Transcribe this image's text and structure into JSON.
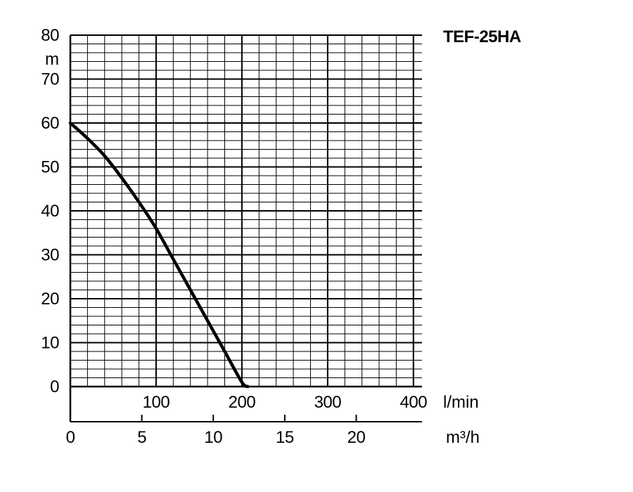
{
  "chart_data": {
    "type": "line",
    "title": "TEF-25HA",
    "ylabel": "m",
    "xlabel_primary": "l/min",
    "xlabel_secondary": "m³/h",
    "ylim": [
      0,
      80
    ],
    "xlim_primary": [
      0,
      410
    ],
    "xlim_secondary": [
      0,
      24.6
    ],
    "yticks": [
      "0",
      "10",
      "20",
      "30",
      "40",
      "50",
      "60",
      "70",
      "80"
    ],
    "xticks_primary": [
      "100",
      "200",
      "300",
      "400"
    ],
    "xticks_secondary": [
      "0",
      "5",
      "10",
      "15",
      "20"
    ],
    "grid": true,
    "series": [
      {
        "x": [
          0,
          20,
          40,
          60,
          80,
          100,
          120,
          140,
          160,
          180,
          200,
          207
        ],
        "y": [
          60,
          56.5,
          52.5,
          47.5,
          42,
          36,
          29,
          22,
          15,
          8,
          1,
          0
        ]
      }
    ]
  }
}
